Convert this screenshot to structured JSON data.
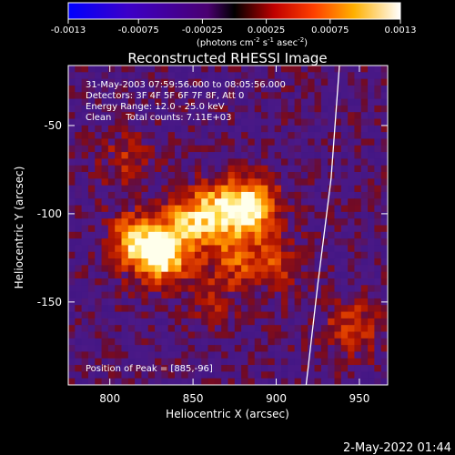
{
  "chart_data": {
    "type": "heatmap",
    "title": "Reconstructed RHESSI Image",
    "xlabel": "Heliocentric X (arcsec)",
    "ylabel": "Heliocentric Y (arcsec)",
    "xlim": [
      775,
      967
    ],
    "ylim": [
      -197,
      -16
    ],
    "x_ticks": [
      800,
      850,
      900,
      950
    ],
    "y_ticks": [
      -50,
      -100,
      -150
    ],
    "colorbar": {
      "min": -0.0013,
      "max": 0.0013,
      "ticks": [
        "-0.0013",
        "-0.00075",
        "-0.00025",
        "0.00025",
        "0.00075",
        "0.0013"
      ],
      "units_prefix": "(photons cm",
      "units_mid": " s",
      "units_mid2": " asec",
      "units_suffix": ")",
      "exp1": "-2",
      "exp2": "-1",
      "exp3": "-2"
    },
    "info_lines": [
      "31-May-2003 07:59:56.000 to 08:05:56.000",
      "Detectors: 3F 4F 5F 6F 7F 8F, Att 0",
      "Energy Range: 12.0 - 25.0 keV",
      "Clean     Total counts: 7.11E+03"
    ],
    "peak_text": "Position of Peak = [885,-96]",
    "peak": [
      885,
      -96
    ],
    "sources": [
      {
        "x": 885,
        "y": -96,
        "value": 0.0013
      },
      {
        "x": 832,
        "y": -123,
        "value": 0.00125
      },
      {
        "x": 815,
        "y": -116,
        "value": 0.00095
      },
      {
        "x": 865,
        "y": -98,
        "value": 0.0009
      },
      {
        "x": 848,
        "y": -105,
        "value": 0.0008
      },
      {
        "x": 875,
        "y": -125,
        "value": 0.0006
      },
      {
        "x": 900,
        "y": -128,
        "value": 0.0005
      },
      {
        "x": 810,
        "y": -70,
        "value": 0.0004
      },
      {
        "x": 945,
        "y": -165,
        "value": 0.0006
      },
      {
        "x": 860,
        "y": -150,
        "value": 0.00035
      }
    ],
    "limb_curve": [
      [
        938,
        -16
      ],
      [
        933,
        -80
      ],
      [
        925,
        -140
      ],
      [
        918,
        -197
      ]
    ],
    "grid": false
  },
  "timestamp": "2-May-2022 01:44"
}
